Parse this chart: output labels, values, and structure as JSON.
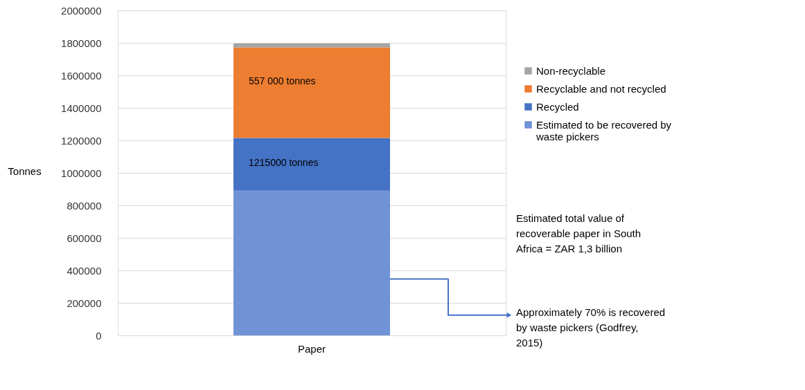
{
  "chart_data": {
    "type": "bar",
    "stacked": true,
    "ylabel": "Tonnes",
    "categories": [
      "Paper"
    ],
    "series": [
      {
        "name": "Estimated to be recovered by waste pickers",
        "color": "#6f93d6",
        "values": [
          890000
        ]
      },
      {
        "name": "Recycled",
        "color": "#4472c4",
        "values": [
          325000
        ]
      },
      {
        "name": "Recyclable and not recycled",
        "color": "#ed7d31",
        "values": [
          557000
        ]
      },
      {
        "name": "Non-recyclable",
        "color": "#a5a5a5",
        "values": [
          25000
        ]
      }
    ],
    "ylim": [
      0,
      2000000
    ],
    "yticks": [
      0,
      200000,
      400000,
      600000,
      800000,
      1000000,
      1200000,
      1400000,
      1600000,
      1800000,
      2000000
    ],
    "grid": "y",
    "legend": "right",
    "annotations": [
      "557 000 tonnes",
      "1215000 tonnes",
      "Estimated total value of recoverable paper in South Africa = ZAR 1,3 billion",
      "Approximately 70% is recovered by waste pickers (Godfrey, 2015)"
    ]
  }
}
